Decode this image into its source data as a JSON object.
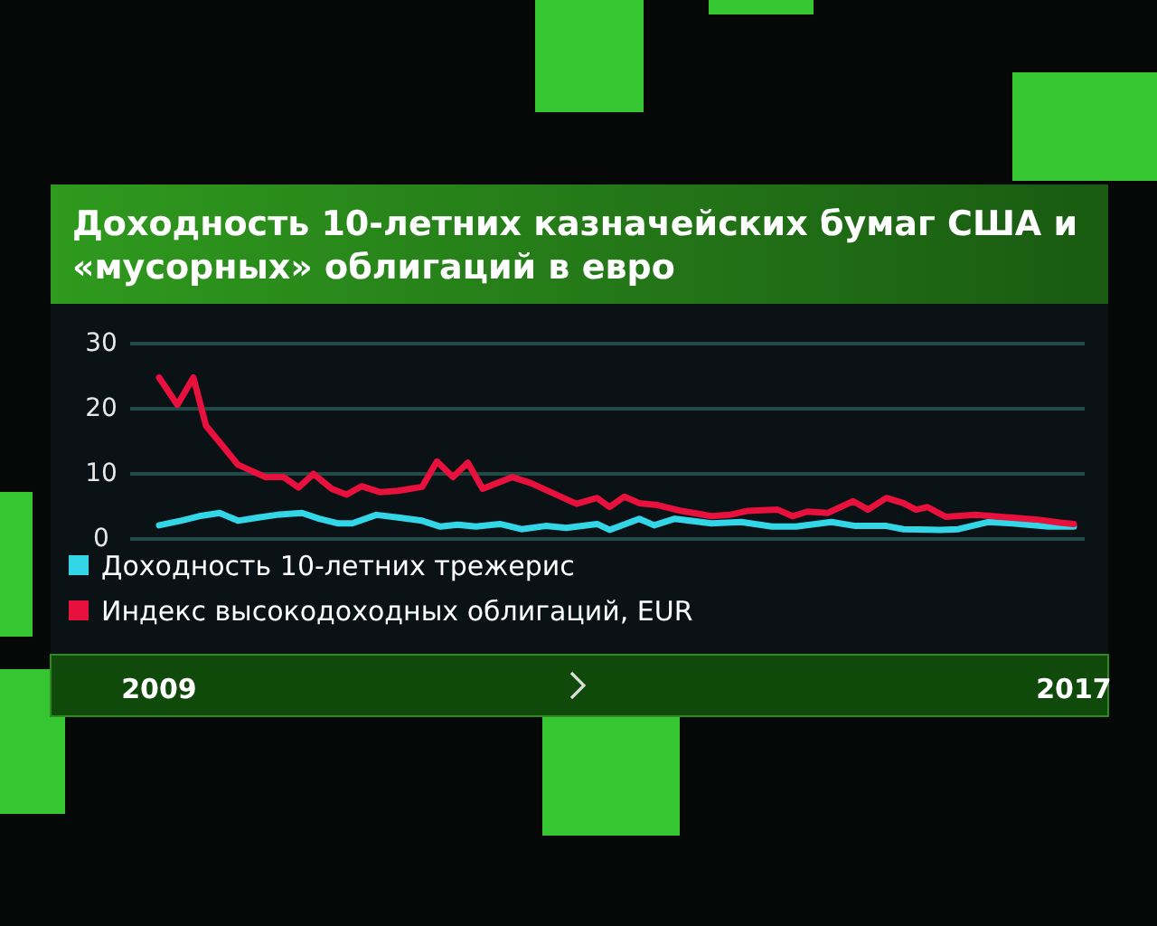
{
  "chart_data": {
    "type": "line",
    "title": "Доходность 10-летних казначейских бумаг США и «мусорных» облигаций в евро",
    "xlim": [
      2009,
      2017
    ],
    "xticks": [
      2009,
      2017
    ],
    "ylim": [
      0,
      30
    ],
    "yticks": [
      0,
      10,
      20,
      30
    ],
    "grid": "y",
    "legend": "bottom",
    "line_style": "solid",
    "marker": "none",
    "series": [
      {
        "name": "Доходность 10-летних трежерис",
        "color": "#33d6e6",
        "x": [
          2009.0,
          2009.19,
          2009.35,
          2009.53,
          2009.69,
          2009.87,
          2010.03,
          2010.25,
          2010.4,
          2010.56,
          2010.69,
          2010.9,
          2011.09,
          2011.3,
          2011.46,
          2011.61,
          2011.77,
          2011.98,
          2012.17,
          2012.38,
          2012.56,
          2012.83,
          2012.94,
          2013.2,
          2013.33,
          2013.51,
          2013.83,
          2014.09,
          2014.36,
          2014.57,
          2014.88,
          2015.09,
          2015.36,
          2015.51,
          2015.83,
          2015.99,
          2016.25,
          2016.46,
          2016.78,
          2017.0
        ],
        "values": [
          2.1,
          2.8,
          3.5,
          4.0,
          2.8,
          3.3,
          3.7,
          4.0,
          3.1,
          2.4,
          2.4,
          3.7,
          3.3,
          2.8,
          1.9,
          2.2,
          1.9,
          2.3,
          1.5,
          2.0,
          1.7,
          2.3,
          1.4,
          3.1,
          2.1,
          3.1,
          2.4,
          2.6,
          1.9,
          1.9,
          2.6,
          2.0,
          2.0,
          1.5,
          1.4,
          1.5,
          2.6,
          2.4,
          1.9,
          1.9
        ]
      },
      {
        "name": "Индекс высокодоходных облигаций, EUR",
        "color": "#e8103c",
        "x": [
          2009.0,
          2009.16,
          2009.3,
          2009.41,
          2009.56,
          2009.69,
          2009.93,
          2010.09,
          2010.22,
          2010.35,
          2010.51,
          2010.64,
          2010.77,
          2010.93,
          2011.09,
          2011.3,
          2011.43,
          2011.57,
          2011.7,
          2011.83,
          2012.09,
          2012.25,
          2012.65,
          2012.83,
          2012.94,
          2013.07,
          2013.2,
          2013.36,
          2013.57,
          2013.83,
          2013.99,
          2014.14,
          2014.41,
          2014.54,
          2014.67,
          2014.85,
          2015.07,
          2015.2,
          2015.36,
          2015.51,
          2015.62,
          2015.72,
          2015.88,
          2016.14,
          2016.36,
          2016.67,
          2016.88,
          2017.0
        ],
        "values": [
          24.8,
          20.6,
          24.8,
          17.4,
          14.2,
          11.4,
          9.5,
          9.5,
          7.9,
          10.0,
          7.7,
          6.8,
          8.1,
          7.2,
          7.4,
          8.0,
          11.9,
          9.5,
          11.7,
          7.7,
          9.5,
          8.6,
          5.4,
          6.3,
          4.9,
          6.5,
          5.5,
          5.2,
          4.3,
          3.5,
          3.7,
          4.3,
          4.5,
          3.5,
          4.2,
          4.0,
          5.8,
          4.5,
          6.3,
          5.5,
          4.5,
          4.9,
          3.4,
          3.7,
          3.4,
          3.0,
          2.5,
          2.3
        ]
      }
    ]
  }
}
